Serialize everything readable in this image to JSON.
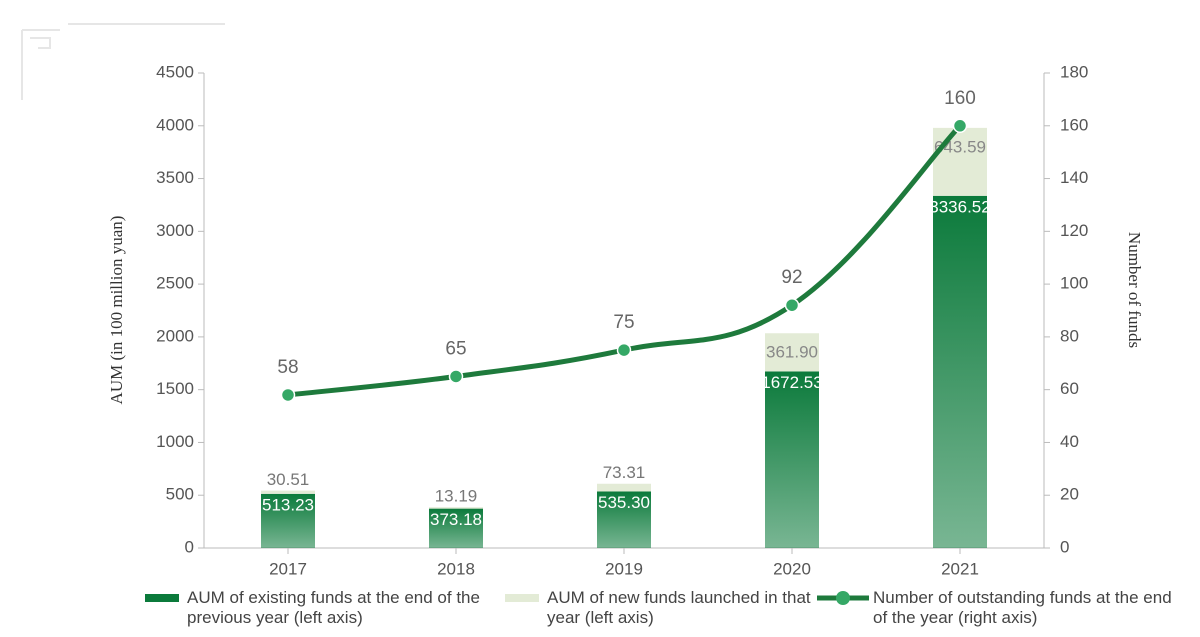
{
  "chart_data": {
    "type": "bar",
    "stacked": true,
    "categories": [
      "2017",
      "2018",
      "2019",
      "2020",
      "2021"
    ],
    "y_label": "AUM (in 100 million yuan)",
    "y2_label": "Number of funds",
    "ylim": [
      0,
      4500
    ],
    "yticks": [
      0,
      500,
      1000,
      1500,
      2000,
      2500,
      3000,
      3500,
      4000,
      4500
    ],
    "y2lim": [
      0,
      180
    ],
    "y2ticks": [
      0,
      20,
      40,
      60,
      80,
      100,
      120,
      140,
      160,
      180
    ],
    "series": [
      {
        "name": "AUM of existing funds at the end of the previous year (left axis)",
        "type": "bar",
        "color": "#0b7a3b",
        "values": [
          513.23,
          373.18,
          535.3,
          1672.53,
          3336.52
        ],
        "value_labels": [
          "513.23",
          "373.18",
          "535.30",
          "1672.53",
          "3336.52"
        ]
      },
      {
        "name": "AUM of new funds launched in that year (left axis)",
        "type": "bar",
        "color": "#e3ebd6",
        "values": [
          30.51,
          13.19,
          73.31,
          361.9,
          643.59
        ],
        "value_labels": [
          "30.51",
          "13.19",
          "73.31",
          "361.90",
          "643.59"
        ]
      },
      {
        "name": "Number of outstanding funds at the end of the year (right axis)",
        "type": "line",
        "axis": "y2",
        "color": "#1e7a3c",
        "values": [
          58,
          65,
          75,
          92,
          160
        ]
      }
    ]
  }
}
